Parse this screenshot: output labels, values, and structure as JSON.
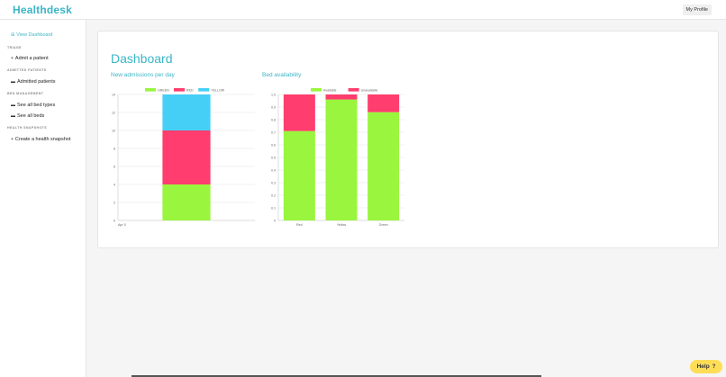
{
  "header": {
    "brand": "Healthdesk",
    "profile_label": "My Profile"
  },
  "sidebar": {
    "view_dashboard": "View Dashboard",
    "sections": {
      "triage": "TRIAGE",
      "admitted": "ADMITTED PATIENTS",
      "bed_mgmt": "BED MANAGEMENT",
      "health": "HEALTH SNAPSHOTS"
    },
    "items": {
      "admit": "Admit a patient",
      "admitted_patients": "Admitted patients",
      "bed_types": "See all bed types",
      "beds": "See all beds",
      "snapshot": "Create a health snapshot"
    }
  },
  "main": {
    "title": "Dashboard"
  },
  "help": {
    "label": "Help",
    "icon": "?"
  },
  "colors": {
    "green": "#99f53d",
    "red": "#ff3d6e",
    "blue": "#45cff6",
    "accent": "#3bb5c7"
  },
  "chart_data": [
    {
      "type": "bar",
      "stacked": true,
      "title": "New admissions per day",
      "categories": [
        "Apr 5"
      ],
      "series": [
        {
          "name": "GREEN",
          "values": [
            4
          ]
        },
        {
          "name": "RED",
          "values": [
            6
          ]
        },
        {
          "name": "YELLOW",
          "values": [
            4
          ]
        }
      ],
      "ylim": [
        0,
        14
      ],
      "yticks": [
        0,
        2,
        4,
        6,
        8,
        10,
        12,
        14
      ],
      "legend": "top"
    },
    {
      "type": "bar",
      "stacked": true,
      "title": "Bed availability",
      "categories": [
        "Red",
        "Yellow",
        "Green"
      ],
      "series": [
        {
          "name": "Available",
          "values": [
            0.71,
            0.96,
            0.86
          ]
        },
        {
          "name": "Unavailable",
          "values": [
            0.29,
            0.04,
            0.14
          ]
        }
      ],
      "ylim": [
        0,
        1
      ],
      "yticks": [
        "0",
        "0.1",
        "0.2",
        "0.3",
        "0.4",
        "0.5",
        "0.6",
        "0.7",
        "0.8",
        "0.9",
        "1.0"
      ],
      "legend": "top"
    }
  ]
}
